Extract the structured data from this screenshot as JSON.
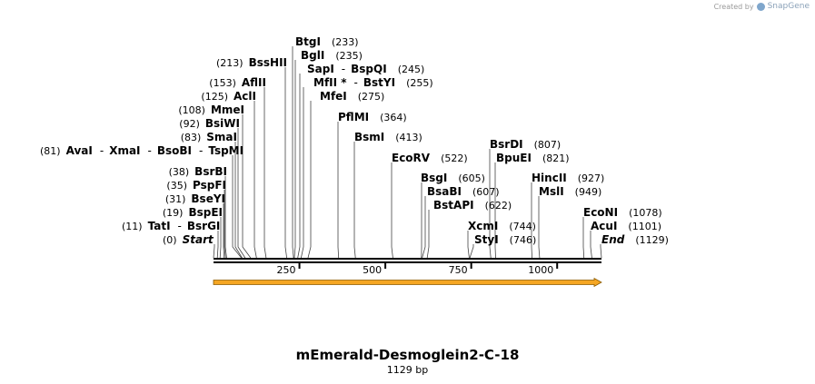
{
  "credit": {
    "created_by": "Created by",
    "brand": "SnapGene",
    "logo_icon": "snapgene-logo-icon"
  },
  "plasmid": {
    "name": "mEmerald-Desmoglein2-C-18",
    "size_label": "1129 bp",
    "length": 1129
  },
  "colors": {
    "feature_arrow": "#f5a623",
    "feature_arrow_edge": "#8a5a00",
    "backbone": "#000000"
  },
  "axis": {
    "ticks": [
      250,
      500,
      750,
      1000
    ],
    "tick_labels": [
      "250",
      "500",
      "750",
      "1000"
    ]
  },
  "feature": {
    "name": "orange-feature-arrow",
    "start": 0,
    "end": 1129,
    "direction": "forward"
  },
  "sites": [
    {
      "pos_label": "(0)",
      "names": [
        "Start"
      ],
      "site": 0,
      "italic": true
    },
    {
      "pos_label": "(11)",
      "names": [
        "TatI",
        "BsrGI"
      ],
      "site": 11
    },
    {
      "pos_label": "(19)",
      "names": [
        "BspEI"
      ],
      "site": 19
    },
    {
      "pos_label": "(31)",
      "names": [
        "BseYI"
      ],
      "site": 31
    },
    {
      "pos_label": "(35)",
      "names": [
        "PspFI"
      ],
      "site": 35
    },
    {
      "pos_label": "(38)",
      "names": [
        "BsrBI"
      ],
      "site": 38
    },
    {
      "pos_label": "(81)",
      "names": [
        "AvaI",
        "XmaI",
        "BsoBI",
        "TspMI"
      ],
      "site": 81
    },
    {
      "pos_label": "(83)",
      "names": [
        "SmaI"
      ],
      "site": 83
    },
    {
      "pos_label": "(92)",
      "names": [
        "BsiWI"
      ],
      "site": 92
    },
    {
      "pos_label": "(108)",
      "names": [
        "MmeI"
      ],
      "site": 108
    },
    {
      "pos_label": "(125)",
      "names": [
        "AclI"
      ],
      "site": 125
    },
    {
      "pos_label": "(153)",
      "names": [
        "AflII"
      ],
      "site": 153
    },
    {
      "pos_label": "(213)",
      "names": [
        "BssHII"
      ],
      "site": 213
    },
    {
      "pos_label": "(233)",
      "names": [
        "BtgI"
      ],
      "site": 233
    },
    {
      "pos_label": "(235)",
      "names": [
        "BglI"
      ],
      "site": 235
    },
    {
      "pos_label": "(245)",
      "names": [
        "SapI",
        "BspQI"
      ],
      "site": 245
    },
    {
      "pos_label": "(255)",
      "names": [
        "MfII *",
        "BstYI"
      ],
      "site": 255
    },
    {
      "pos_label": "(275)",
      "names": [
        "MfeI"
      ],
      "site": 275
    },
    {
      "pos_label": "(364)",
      "names": [
        "PflMI"
      ],
      "site": 364
    },
    {
      "pos_label": "(413)",
      "names": [
        "BsmI"
      ],
      "site": 413
    },
    {
      "pos_label": "(522)",
      "names": [
        "EcoRV"
      ],
      "site": 522
    },
    {
      "pos_label": "(605)",
      "names": [
        "BsgI"
      ],
      "site": 605
    },
    {
      "pos_label": "(607)",
      "names": [
        "BsaBI"
      ],
      "site": 607
    },
    {
      "pos_label": "(622)",
      "names": [
        "BstAPI"
      ],
      "site": 622
    },
    {
      "pos_label": "(744)",
      "names": [
        "XcmI"
      ],
      "site": 744
    },
    {
      "pos_label": "(746)",
      "names": [
        "StyI"
      ],
      "site": 746
    },
    {
      "pos_label": "(807)",
      "names": [
        "BsrDI"
      ],
      "site": 807
    },
    {
      "pos_label": "(821)",
      "names": [
        "BpuEI"
      ],
      "site": 821
    },
    {
      "pos_label": "(927)",
      "names": [
        "HincII"
      ],
      "site": 927
    },
    {
      "pos_label": "(949)",
      "names": [
        "MslI"
      ],
      "site": 949
    },
    {
      "pos_label": "(1078)",
      "names": [
        "EcoNI"
      ],
      "site": 1078
    },
    {
      "pos_label": "(1101)",
      "names": [
        "AcuI"
      ],
      "site": 1101
    },
    {
      "pos_label": "(1129)",
      "names": [
        "End"
      ],
      "site": 1129,
      "italic": true
    }
  ]
}
